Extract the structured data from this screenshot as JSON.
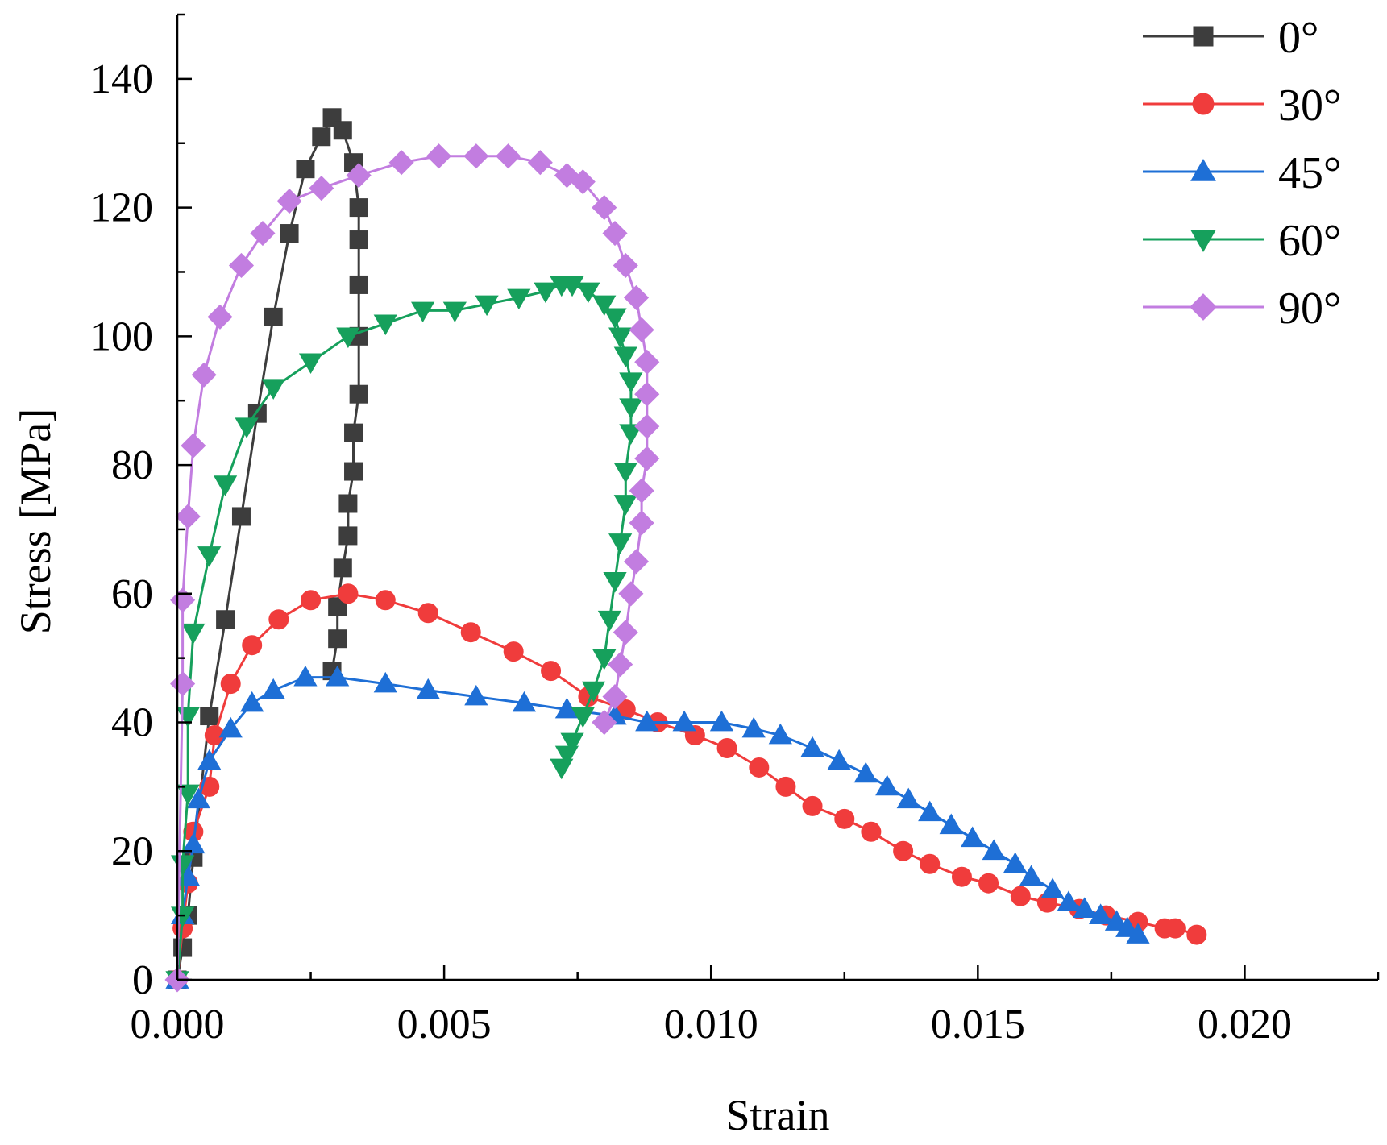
{
  "chart_data": {
    "type": "line",
    "title": "",
    "xlabel": "Strain",
    "ylabel": "Stress [MPa]",
    "xlim": [
      0,
      0.0225
    ],
    "ylim": [
      0,
      150
    ],
    "xticks": [
      0.0,
      0.005,
      0.01,
      0.015,
      0.02
    ],
    "xtick_labels": [
      "0.000",
      "0.005",
      "0.010",
      "0.015",
      "0.020"
    ],
    "yticks": [
      0,
      20,
      40,
      60,
      80,
      100,
      120,
      140
    ],
    "ytick_labels": [
      "0",
      "20",
      "40",
      "60",
      "80",
      "100",
      "120",
      "140"
    ],
    "grid": false,
    "legend_position": "top-right",
    "series": [
      {
        "name": "0°",
        "color": "#3d3d3d",
        "marker": "square",
        "points": [
          [
            0,
            0
          ],
          [
            0.0001,
            5
          ],
          [
            0.0002,
            10
          ],
          [
            0.0003,
            19
          ],
          [
            0.0006,
            41
          ],
          [
            0.0009,
            56
          ],
          [
            0.0012,
            72
          ],
          [
            0.0015,
            88
          ],
          [
            0.0018,
            103
          ],
          [
            0.0021,
            116
          ],
          [
            0.0024,
            126
          ],
          [
            0.0027,
            131
          ],
          [
            0.0029,
            134
          ],
          [
            0.0031,
            132
          ],
          [
            0.0033,
            127
          ],
          [
            0.0034,
            120
          ],
          [
            0.0034,
            115
          ],
          [
            0.0034,
            108
          ],
          [
            0.0034,
            100
          ],
          [
            0.0034,
            91
          ],
          [
            0.0033,
            85
          ],
          [
            0.0033,
            79
          ],
          [
            0.0032,
            74
          ],
          [
            0.0032,
            69
          ],
          [
            0.0031,
            64
          ],
          [
            0.003,
            58
          ],
          [
            0.003,
            53
          ],
          [
            0.0029,
            48
          ]
        ]
      },
      {
        "name": "30°",
        "color": "#f03c3c",
        "marker": "circle",
        "points": [
          [
            0,
            0
          ],
          [
            0.0001,
            8
          ],
          [
            0.0002,
            15
          ],
          [
            0.0003,
            23
          ],
          [
            0.0006,
            30
          ],
          [
            0.0007,
            38
          ],
          [
            0.001,
            46
          ],
          [
            0.0014,
            52
          ],
          [
            0.0019,
            56
          ],
          [
            0.0025,
            59
          ],
          [
            0.0032,
            60
          ],
          [
            0.0039,
            59
          ],
          [
            0.0047,
            57
          ],
          [
            0.0055,
            54
          ],
          [
            0.0063,
            51
          ],
          [
            0.007,
            48
          ],
          [
            0.0077,
            44
          ],
          [
            0.0084,
            42
          ],
          [
            0.009,
            40
          ],
          [
            0.0097,
            38
          ],
          [
            0.0103,
            36
          ],
          [
            0.0109,
            33
          ],
          [
            0.0114,
            30
          ],
          [
            0.0119,
            27
          ],
          [
            0.0125,
            25
          ],
          [
            0.013,
            23
          ],
          [
            0.0136,
            20
          ],
          [
            0.0141,
            18
          ],
          [
            0.0147,
            16
          ],
          [
            0.0152,
            15
          ],
          [
            0.0158,
            13
          ],
          [
            0.0163,
            12
          ],
          [
            0.0169,
            11
          ],
          [
            0.0174,
            10
          ],
          [
            0.018,
            9
          ],
          [
            0.0185,
            8
          ],
          [
            0.0187,
            8
          ],
          [
            0.0191,
            7
          ]
        ]
      },
      {
        "name": "45°",
        "color": "#1e6fd6",
        "marker": "triangle-up",
        "points": [
          [
            0,
            0
          ],
          [
            0.0001,
            10
          ],
          [
            0.0002,
            16
          ],
          [
            0.0003,
            21
          ],
          [
            0.0004,
            28
          ],
          [
            0.0006,
            34
          ],
          [
            0.001,
            39
          ],
          [
            0.0014,
            43
          ],
          [
            0.0018,
            45
          ],
          [
            0.0024,
            47
          ],
          [
            0.003,
            47
          ],
          [
            0.0039,
            46
          ],
          [
            0.0047,
            45
          ],
          [
            0.0056,
            44
          ],
          [
            0.0065,
            43
          ],
          [
            0.0073,
            42
          ],
          [
            0.0082,
            41
          ],
          [
            0.0088,
            40
          ],
          [
            0.0095,
            40
          ],
          [
            0.0102,
            40
          ],
          [
            0.0108,
            39
          ],
          [
            0.0113,
            38
          ],
          [
            0.0119,
            36
          ],
          [
            0.0124,
            34
          ],
          [
            0.0129,
            32
          ],
          [
            0.0133,
            30
          ],
          [
            0.0137,
            28
          ],
          [
            0.0141,
            26
          ],
          [
            0.0145,
            24
          ],
          [
            0.0149,
            22
          ],
          [
            0.0153,
            20
          ],
          [
            0.0157,
            18
          ],
          [
            0.016,
            16
          ],
          [
            0.0164,
            14
          ],
          [
            0.0167,
            12
          ],
          [
            0.017,
            11
          ],
          [
            0.0173,
            10
          ],
          [
            0.0176,
            9
          ],
          [
            0.0178,
            8
          ],
          [
            0.018,
            7
          ]
        ]
      },
      {
        "name": "60°",
        "color": "#16a05c",
        "marker": "triangle-down",
        "points": [
          [
            0,
            0
          ],
          [
            0.0001,
            10
          ],
          [
            0.0001,
            18
          ],
          [
            0.0002,
            29
          ],
          [
            0.0002,
            41
          ],
          [
            0.0003,
            54
          ],
          [
            0.0006,
            66
          ],
          [
            0.0009,
            77
          ],
          [
            0.0013,
            86
          ],
          [
            0.0018,
            92
          ],
          [
            0.0025,
            96
          ],
          [
            0.0032,
            100
          ],
          [
            0.0039,
            102
          ],
          [
            0.0046,
            104
          ],
          [
            0.0052,
            104
          ],
          [
            0.0058,
            105
          ],
          [
            0.0064,
            106
          ],
          [
            0.0069,
            107
          ],
          [
            0.0072,
            108
          ],
          [
            0.0074,
            108
          ],
          [
            0.0077,
            107
          ],
          [
            0.008,
            105
          ],
          [
            0.0082,
            103
          ],
          [
            0.0083,
            100
          ],
          [
            0.0084,
            97
          ],
          [
            0.0085,
            93
          ],
          [
            0.0085,
            89
          ],
          [
            0.0085,
            85
          ],
          [
            0.0084,
            79
          ],
          [
            0.0084,
            74
          ],
          [
            0.0083,
            68
          ],
          [
            0.0082,
            62
          ],
          [
            0.0081,
            56
          ],
          [
            0.008,
            50
          ],
          [
            0.0078,
            45
          ],
          [
            0.0076,
            41
          ],
          [
            0.0074,
            37
          ],
          [
            0.0073,
            35
          ],
          [
            0.0072,
            33
          ]
        ]
      },
      {
        "name": "90°",
        "color": "#c27de0",
        "marker": "diamond",
        "points": [
          [
            0,
            0
          ],
          [
            0.0001,
            46
          ],
          [
            0.0001,
            59
          ],
          [
            0.0002,
            72
          ],
          [
            0.0003,
            83
          ],
          [
            0.0005,
            94
          ],
          [
            0.0008,
            103
          ],
          [
            0.0012,
            111
          ],
          [
            0.0016,
            116
          ],
          [
            0.0021,
            121
          ],
          [
            0.0027,
            123
          ],
          [
            0.0034,
            125
          ],
          [
            0.0042,
            127
          ],
          [
            0.0049,
            128
          ],
          [
            0.0056,
            128
          ],
          [
            0.0062,
            128
          ],
          [
            0.0068,
            127
          ],
          [
            0.0073,
            125
          ],
          [
            0.0076,
            124
          ],
          [
            0.008,
            120
          ],
          [
            0.0082,
            116
          ],
          [
            0.0084,
            111
          ],
          [
            0.0086,
            106
          ],
          [
            0.0087,
            101
          ],
          [
            0.0088,
            96
          ],
          [
            0.0088,
            91
          ],
          [
            0.0088,
            86
          ],
          [
            0.0088,
            81
          ],
          [
            0.0087,
            76
          ],
          [
            0.0087,
            71
          ],
          [
            0.0086,
            65
          ],
          [
            0.0085,
            60
          ],
          [
            0.0084,
            54
          ],
          [
            0.0083,
            49
          ],
          [
            0.0082,
            44
          ],
          [
            0.008,
            40
          ]
        ]
      }
    ]
  }
}
